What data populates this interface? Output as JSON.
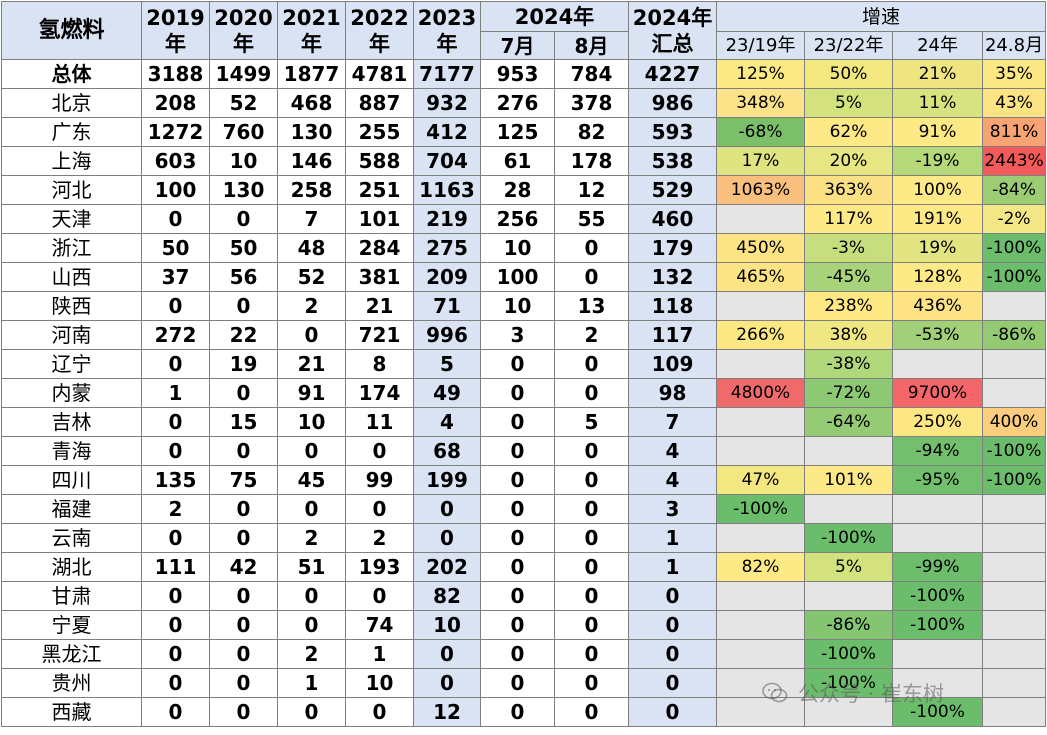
{
  "header": {
    "corner": "氢燃料",
    "years": [
      "2019\n年",
      "2020\n年",
      "2021\n年",
      "2022\n年",
      "2023\n年"
    ],
    "group_2024": "2024年",
    "months": [
      "7月",
      "8月"
    ],
    "summary": "2024年\n汇总",
    "rate_group": "增速",
    "rate_cols": [
      "23/19年",
      "23/22年",
      "24年",
      "24.8月"
    ]
  },
  "colors": {
    "header_bg": "#dae3f3",
    "highlight_col_bg": "#dae3f3",
    "border": "#7f7f7f",
    "empty_rate": "#e5e5e5"
  },
  "rows": [
    {
      "region": "总体",
      "v": [
        "3188",
        "1499",
        "1877",
        "4781",
        "7177",
        "953",
        "784",
        "4227"
      ],
      "r": [
        "125%",
        "50%",
        "21%",
        "35%"
      ],
      "c": [
        "#fbe984",
        "#f3e87f",
        "#eee580",
        "#fce883"
      ]
    },
    {
      "region": "北京",
      "v": [
        "208",
        "52",
        "468",
        "887",
        "932",
        "276",
        "378",
        "986"
      ],
      "r": [
        "348%",
        "5%",
        "11%",
        "43%"
      ],
      "c": [
        "#fce38a",
        "#d3e27c",
        "#d6e37e",
        "#fce383"
      ]
    },
    {
      "region": "广东",
      "v": [
        "1272",
        "760",
        "130",
        "255",
        "412",
        "125",
        "82",
        "593"
      ],
      "r": [
        "-68%",
        "62%",
        "91%",
        "811%"
      ],
      "c": [
        "#7cbf6b",
        "#fde985",
        "#fde985",
        "#f7a374"
      ]
    },
    {
      "region": "上海",
      "v": [
        "603",
        "10",
        "146",
        "588",
        "704",
        "61",
        "178",
        "538"
      ],
      "r": [
        "17%",
        "20%",
        "-19%",
        "2443%"
      ],
      "c": [
        "#dfe480",
        "#e6e682",
        "#b5d879",
        "#f25b59"
      ]
    },
    {
      "region": "河北",
      "v": [
        "100",
        "130",
        "258",
        "251",
        "1163",
        "28",
        "12",
        "529"
      ],
      "r": [
        "1063%",
        "363%",
        "100%",
        "-84%"
      ],
      "c": [
        "#f8c07c",
        "#fbe183",
        "#fde985",
        "#9ccc74"
      ]
    },
    {
      "region": "天津",
      "v": [
        "0",
        "0",
        "7",
        "101",
        "219",
        "256",
        "55",
        "460"
      ],
      "r": [
        "",
        "117%",
        "191%",
        "-2%"
      ],
      "c": [
        "#e5e5e5",
        "#fde985",
        "#fde985",
        "#f2e784"
      ]
    },
    {
      "region": "浙江",
      "v": [
        "50",
        "50",
        "48",
        "284",
        "275",
        "10",
        "0",
        "179"
      ],
      "r": [
        "450%",
        "-3%",
        "19%",
        "-100%"
      ],
      "c": [
        "#fce383",
        "#c6de7d",
        "#e2e581",
        "#6bbd6b"
      ]
    },
    {
      "region": "山西",
      "v": [
        "37",
        "56",
        "52",
        "381",
        "209",
        "100",
        "0",
        "132"
      ],
      "r": [
        "465%",
        "-45%",
        "128%",
        "-100%"
      ],
      "c": [
        "#fce383",
        "#a9d37a",
        "#fde985",
        "#6bbd6b"
      ]
    },
    {
      "region": "陕西",
      "v": [
        "0",
        "0",
        "2",
        "21",
        "71",
        "10",
        "13",
        "118"
      ],
      "r": [
        "",
        "238%",
        "436%",
        ""
      ],
      "c": [
        "#e5e5e5",
        "#fde884",
        "#fde384",
        "#e5e5e5"
      ]
    },
    {
      "region": "河南",
      "v": [
        "272",
        "22",
        "0",
        "721",
        "996",
        "3",
        "2",
        "117"
      ],
      "r": [
        "266%",
        "38%",
        "-53%",
        "-86%"
      ],
      "c": [
        "#fce883",
        "#eee782",
        "#a1d078",
        "#94ca73"
      ]
    },
    {
      "region": "辽宁",
      "v": [
        "0",
        "19",
        "21",
        "8",
        "5",
        "0",
        "0",
        "109"
      ],
      "r": [
        "",
        "-38%",
        "",
        ""
      ],
      "c": [
        "#e5e5e5",
        "#b1d77b",
        "#e5e5e5",
        "#e5e5e5"
      ]
    },
    {
      "region": "内蒙",
      "v": [
        "1",
        "0",
        "91",
        "174",
        "49",
        "0",
        "0",
        "98"
      ],
      "r": [
        "4800%",
        "-72%",
        "9700%",
        ""
      ],
      "c": [
        "#f06a6b",
        "#8dc872",
        "#f5666b",
        "#e5e5e5"
      ]
    },
    {
      "region": "吉林",
      "v": [
        "0",
        "15",
        "10",
        "11",
        "4",
        "0",
        "5",
        "7"
      ],
      "r": [
        "",
        "-64%",
        "250%",
        "400%"
      ],
      "c": [
        "#e5e5e5",
        "#96cb75",
        "#fde784",
        "#fbcd7f"
      ]
    },
    {
      "region": "青海",
      "v": [
        "0",
        "0",
        "0",
        "0",
        "68",
        "0",
        "0",
        "4"
      ],
      "r": [
        "",
        "",
        "-94%",
        "-100%"
      ],
      "c": [
        "#e5e5e5",
        "#e5e5e5",
        "#74bf6e",
        "#6bbd6b"
      ]
    },
    {
      "region": "四川",
      "v": [
        "135",
        "75",
        "45",
        "99",
        "199",
        "0",
        "0",
        "4"
      ],
      "r": [
        "47%",
        "101%",
        "-95%",
        "-100%"
      ],
      "c": [
        "#f3e782",
        "#fde985",
        "#72bf6d",
        "#6bbd6b"
      ]
    },
    {
      "region": "福建",
      "v": [
        "2",
        "0",
        "0",
        "0",
        "0",
        "0",
        "0",
        "3"
      ],
      "r": [
        "-100%",
        "",
        "",
        ""
      ],
      "c": [
        "#6bbd6b",
        "#e5e5e5",
        "#e5e5e5",
        "#e5e5e5"
      ]
    },
    {
      "region": "云南",
      "v": [
        "0",
        "0",
        "2",
        "2",
        "0",
        "0",
        "0",
        "1"
      ],
      "r": [
        "",
        "-100%",
        "",
        ""
      ],
      "c": [
        "#e5e5e5",
        "#6bbd6b",
        "#e5e5e5",
        "#e5e5e5"
      ]
    },
    {
      "region": "湖北",
      "v": [
        "111",
        "42",
        "51",
        "193",
        "202",
        "0",
        "0",
        "1"
      ],
      "r": [
        "82%",
        "5%",
        "-99%",
        ""
      ],
      "c": [
        "#fde985",
        "#d3e27c",
        "#6dbd6c",
        "#e5e5e5"
      ]
    },
    {
      "region": "甘肃",
      "v": [
        "0",
        "0",
        "0",
        "0",
        "82",
        "0",
        "0",
        "0"
      ],
      "r": [
        "",
        "",
        "-100%",
        ""
      ],
      "c": [
        "#e5e5e5",
        "#e5e5e5",
        "#6bbd6b",
        "#e5e5e5"
      ]
    },
    {
      "region": "宁夏",
      "v": [
        "0",
        "0",
        "0",
        "74",
        "10",
        "0",
        "0",
        "0"
      ],
      "r": [
        "",
        "-86%",
        "-100%",
        ""
      ],
      "c": [
        "#e5e5e5",
        "#83c570",
        "#6bbd6b",
        "#e5e5e5"
      ]
    },
    {
      "region": "黑龙江",
      "v": [
        "0",
        "0",
        "2",
        "1",
        "0",
        "0",
        "0",
        "0"
      ],
      "r": [
        "",
        "-100%",
        "",
        ""
      ],
      "c": [
        "#e5e5e5",
        "#6bbd6b",
        "#e5e5e5",
        "#e5e5e5"
      ]
    },
    {
      "region": "贵州",
      "v": [
        "0",
        "0",
        "1",
        "10",
        "0",
        "0",
        "0",
        "0"
      ],
      "r": [
        "",
        "-100%",
        "",
        ""
      ],
      "c": [
        "#e5e5e5",
        "#6bbd6b",
        "#e5e5e5",
        "#e5e5e5"
      ]
    },
    {
      "region": "西藏",
      "v": [
        "0",
        "0",
        "0",
        "0",
        "12",
        "0",
        "0",
        "0"
      ],
      "r": [
        "",
        "",
        "-100%",
        ""
      ],
      "c": [
        "#e5e5e5",
        "#e5e5e5",
        "#6bbd6b",
        "#e5e5e5"
      ]
    }
  ],
  "watermark": {
    "icon": "wechat-icon",
    "text": "公众号 · 崔东树"
  }
}
